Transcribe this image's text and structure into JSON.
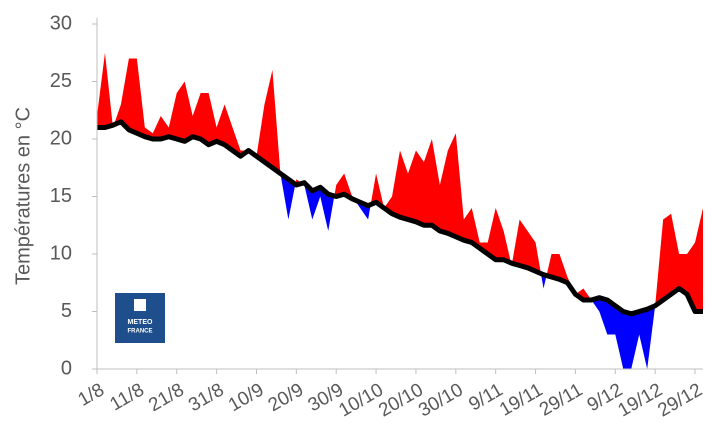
{
  "chart_data": {
    "type": "area-anomaly",
    "y_label": "Températures en °C",
    "logo_text": [
      "METEO",
      "FRANCE"
    ],
    "categories": [
      "1/8",
      null,
      null,
      null,
      null,
      "11/8",
      null,
      null,
      null,
      null,
      "21/8",
      null,
      null,
      null,
      null,
      "31/8",
      null,
      null,
      null,
      null,
      "10/9",
      null,
      null,
      null,
      null,
      "20/9",
      null,
      null,
      null,
      null,
      "30/9",
      null,
      null,
      null,
      null,
      "10/10",
      null,
      null,
      null,
      null,
      "20/10",
      null,
      null,
      null,
      null,
      "30/10",
      null,
      null,
      null,
      null,
      "9/11",
      null,
      null,
      null,
      null,
      "19/11",
      null,
      null,
      null,
      null,
      "29/11",
      null,
      null,
      null,
      null,
      "9/12",
      null,
      null,
      null,
      null,
      "19/12",
      null,
      null,
      null,
      null,
      "29/12",
      null
    ],
    "series": [
      {
        "color_above": "#ff0000",
        "color_below": "#0000ff",
        "values": [
          22,
          27.5,
          21,
          23,
          27,
          27,
          21,
          20.5,
          22,
          21,
          24,
          25,
          22,
          24,
          24,
          21,
          23,
          21,
          19,
          19,
          18.5,
          23,
          26,
          17,
          13,
          16.5,
          16,
          13,
          15,
          12,
          16,
          17,
          15,
          14,
          13,
          17,
          14,
          15,
          19,
          17,
          19,
          18,
          20,
          16,
          19,
          20.5,
          13,
          14,
          11,
          11,
          14,
          12,
          9,
          13,
          12,
          11,
          7,
          10,
          10,
          8,
          6.5,
          7,
          6,
          5,
          3,
          3,
          0,
          0,
          3,
          0,
          5.5,
          13,
          13.5,
          10,
          10,
          11,
          14
        ]
      },
      {
        "color": "#000000",
        "values": [
          21,
          21,
          21.2,
          21.5,
          20.8,
          20.5,
          20.2,
          20,
          20,
          20.2,
          20,
          19.8,
          20.2,
          20,
          19.5,
          19.8,
          19.5,
          19,
          18.5,
          19,
          18.5,
          18,
          17.5,
          17,
          16.5,
          16,
          16.2,
          15.5,
          15.8,
          15.2,
          15,
          15.2,
          14.8,
          14.5,
          14.2,
          14.5,
          14,
          13.5,
          13.2,
          13,
          12.8,
          12.5,
          12.5,
          12,
          11.8,
          11.5,
          11.2,
          11,
          10.5,
          10,
          9.5,
          9.5,
          9.2,
          9,
          8.8,
          8.5,
          8.2,
          8,
          7.8,
          7.5,
          6.5,
          6,
          6,
          6.2,
          6,
          5.5,
          5,
          4.8,
          5,
          5.2,
          5.5,
          6,
          6.5,
          7,
          6.5,
          5,
          5
        ]
      }
    ],
    "ylim": [
      0,
      30
    ],
    "yticks": [
      0,
      5,
      10,
      15,
      20,
      25,
      30
    ]
  }
}
